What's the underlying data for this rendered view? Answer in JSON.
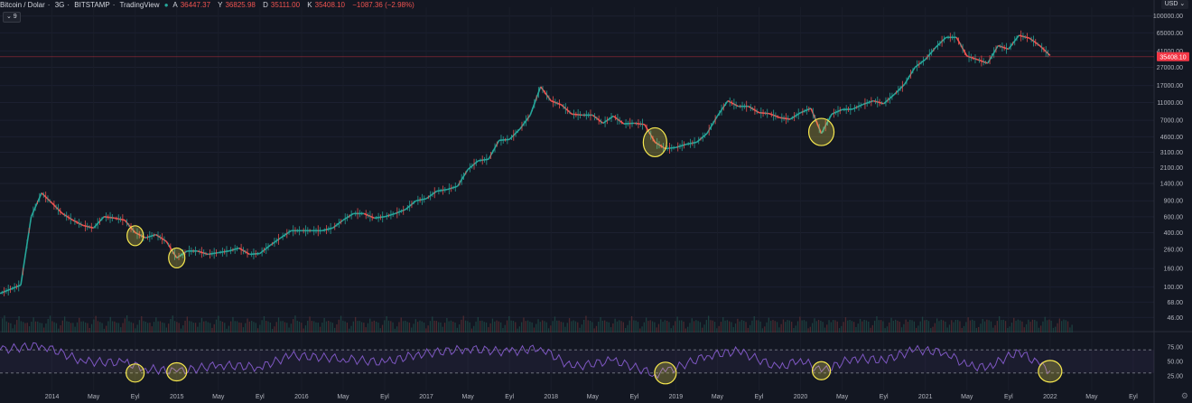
{
  "header": {
    "symbol": "Bitcoin / Dolar",
    "interval": "3G",
    "exchange": "BITSTAMP",
    "provider": "TradingView",
    "open_label": "A",
    "open": "36447.37",
    "high_label": "Y",
    "high": "36825.98",
    "low_label": "D",
    "low": "35111.00",
    "close_label": "K",
    "close": "35408.10",
    "change": "−1087.36 (−2.98%)"
  },
  "indicator_toggle": "⌄ 9",
  "currency": "USD ⌄",
  "settings_icon": "gear-icon",
  "colors": {
    "background": "#131722",
    "up": "#26a69a",
    "down": "#ef5350",
    "rsi_line": "#7e57c2",
    "rsi_band": "#7e57c2",
    "highlight": "#f7e84f",
    "price_label": "#f23645"
  },
  "chart_data": [
    {
      "type": "line",
      "title": "Bitcoin / Dolar · 3G · BITSTAMP",
      "y_scale": "log",
      "ylim": [
        36,
        125000
      ],
      "y_ticks": [
        "100000.00",
        "65000.00",
        "41000.00",
        "27000.00",
        "17000.00",
        "11000.00",
        "7000.00",
        "4600.00",
        "3100.00",
        "2100.00",
        "1400.00",
        "900.00",
        "600.00",
        "400.00",
        "260.00",
        "160.00",
        "100.00",
        "68.00",
        "46.00"
      ],
      "x_ticks": [
        "2014",
        "May",
        "Eyl",
        "2015",
        "May",
        "Eyl",
        "2016",
        "May",
        "Eyl",
        "2017",
        "May",
        "Eyl",
        "2018",
        "May",
        "Eyl",
        "2019",
        "May",
        "Eyl",
        "2020",
        "May",
        "Eyl",
        "2021",
        "May",
        "Eyl",
        "2022",
        "May",
        "Eyl"
      ],
      "last_price_label": "35408.10",
      "series": [
        {
          "x": [
            "2013-08",
            "2013-10",
            "2013-11",
            "2013-12",
            "2014-01",
            "2014-02",
            "2014-03",
            "2014-04",
            "2014-05",
            "2014-06",
            "2014-07",
            "2014-08",
            "2014-09",
            "2014-10",
            "2014-11",
            "2014-12",
            "2015-01",
            "2015-02",
            "2015-03",
            "2015-04",
            "2015-05",
            "2015-06",
            "2015-07",
            "2015-08",
            "2015-09",
            "2015-10",
            "2015-11",
            "2015-12",
            "2016-01",
            "2016-02",
            "2016-03",
            "2016-04",
            "2016-05",
            "2016-06",
            "2016-07",
            "2016-08",
            "2016-09",
            "2016-10",
            "2016-11",
            "2016-12",
            "2017-01",
            "2017-02",
            "2017-03",
            "2017-04",
            "2017-05",
            "2017-06",
            "2017-07",
            "2017-08",
            "2017-09",
            "2017-10",
            "2017-11",
            "2017-12",
            "2018-01",
            "2018-02",
            "2018-03",
            "2018-04",
            "2018-05",
            "2018-06",
            "2018-07",
            "2018-08",
            "2018-09",
            "2018-10",
            "2018-11",
            "2018-12",
            "2019-01",
            "2019-02",
            "2019-03",
            "2019-04",
            "2019-05",
            "2019-06",
            "2019-07",
            "2019-08",
            "2019-09",
            "2019-10",
            "2019-11",
            "2019-12",
            "2020-01",
            "2020-02",
            "2020-03",
            "2020-04",
            "2020-05",
            "2020-06",
            "2020-07",
            "2020-08",
            "2020-09",
            "2020-10",
            "2020-11",
            "2020-12",
            "2021-01",
            "2021-02",
            "2021-03",
            "2021-04",
            "2021-05",
            "2021-06",
            "2021-07",
            "2021-08",
            "2021-09",
            "2021-10",
            "2021-11",
            "2021-12",
            "2022-01"
          ],
          "y": [
            85,
            105,
            600,
            1100,
            850,
            650,
            550,
            480,
            450,
            600,
            580,
            550,
            400,
            350,
            380,
            320,
            210,
            250,
            250,
            230,
            240,
            250,
            270,
            230,
            235,
            290,
            350,
            420,
            420,
            420,
            420,
            450,
            550,
            650,
            650,
            580,
            600,
            650,
            720,
            900,
            950,
            1150,
            1200,
            1300,
            2000,
            2500,
            2600,
            4200,
            4300,
            5600,
            8000,
            16500,
            11500,
            10400,
            8200,
            8000,
            8000,
            6500,
            7800,
            6400,
            6500,
            6300,
            4000,
            3400,
            3500,
            3800,
            4000,
            5000,
            7800,
            11500,
            10000,
            10000,
            8500,
            8300,
            7500,
            7200,
            8500,
            9500,
            5000,
            8200,
            9200,
            9300,
            10500,
            11500,
            10700,
            13500,
            17500,
            27000,
            33000,
            45000,
            58000,
            58000,
            36000,
            33000,
            30000,
            47000,
            43000,
            61000,
            57000,
            47000,
            36500
          ]
        }
      ],
      "annotations": [
        "highlight-2014-sep",
        "highlight-2015-jan",
        "highlight-2018-dec",
        "highlight-2020-mar"
      ]
    },
    {
      "type": "line",
      "title": "RSI",
      "ylim": [
        0,
        100
      ],
      "y_ticks": [
        "75.00",
        "50.00",
        "25.00"
      ],
      "bands": [
        30,
        70
      ],
      "series": [
        {
          "x": [
            "2013-08",
            "2013-12",
            "2014-04",
            "2014-08",
            "2014-10",
            "2015-01",
            "2015-05",
            "2015-09",
            "2015-12",
            "2016-05",
            "2016-09",
            "2016-12",
            "2017-05",
            "2017-09",
            "2017-12",
            "2018-03",
            "2018-07",
            "2018-11",
            "2018-12",
            "2019-04",
            "2019-07",
            "2019-11",
            "2020-01",
            "2020-03",
            "2020-06",
            "2020-09",
            "2020-12",
            "2021-03",
            "2021-05",
            "2021-07",
            "2021-10",
            "2021-12",
            "2022-01"
          ],
          "y": [
            70,
            78,
            50,
            48,
            38,
            32,
            44,
            40,
            60,
            55,
            48,
            62,
            72,
            66,
            74,
            40,
            52,
            28,
            32,
            60,
            68,
            38,
            55,
            32,
            56,
            52,
            70,
            66,
            42,
            40,
            68,
            44,
            34
          ]
        }
      ],
      "annotations": [
        "highlight-2014-sep",
        "highlight-2015-jan",
        "highlight-2018-dec",
        "highlight-2020-mar",
        "highlight-2022-jan"
      ]
    }
  ]
}
